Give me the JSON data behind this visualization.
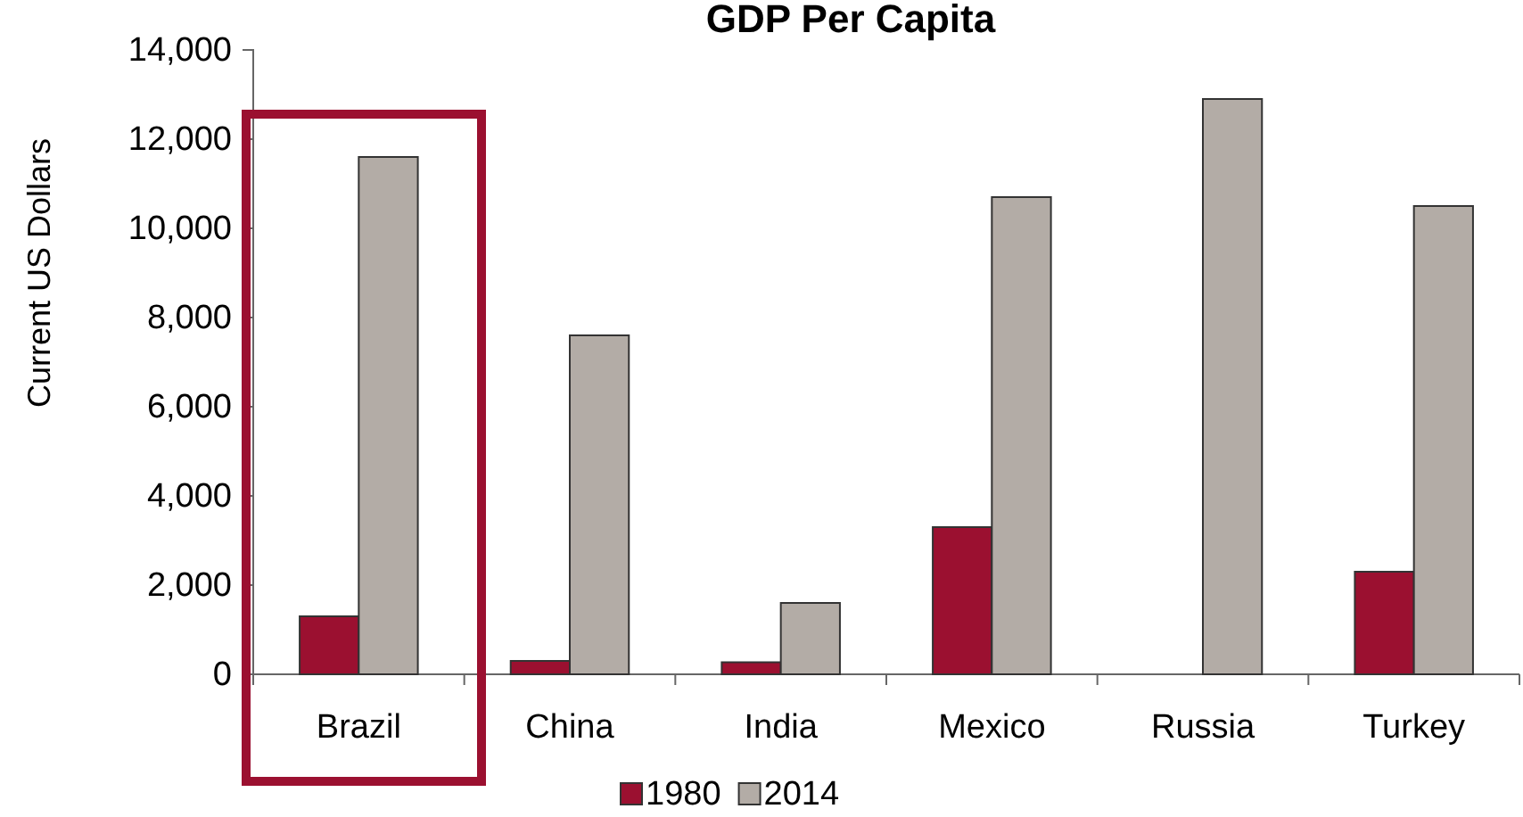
{
  "chart_data": {
    "type": "bar",
    "title": "GDP Per Capita",
    "ylabel": "Current  US Dollars",
    "categories": [
      "Brazil",
      "China",
      "India",
      "Mexico",
      "Russia",
      "Turkey"
    ],
    "series": [
      {
        "name": "1980",
        "color": "#9b1030",
        "values": [
          1300,
          300,
          270,
          3300,
          null,
          2300
        ]
      },
      {
        "name": "2014",
        "color": "#b3aca6",
        "values": [
          11600,
          7600,
          1600,
          10700,
          12900,
          10500
        ]
      }
    ],
    "ylim": [
      0,
      14000
    ],
    "yticks": [
      {
        "value": 0,
        "label": "0"
      },
      {
        "value": 2000,
        "label": "2,000"
      },
      {
        "value": 4000,
        "label": "4,000"
      },
      {
        "value": 6000,
        "label": "6,000"
      },
      {
        "value": 8000,
        "label": "8,000"
      },
      {
        "value": 10000,
        "label": "10,000"
      },
      {
        "value": 12000,
        "label": "12,000"
      },
      {
        "value": 14000,
        "label": "14,000"
      }
    ],
    "grid": false,
    "legend": "bottom"
  }
}
